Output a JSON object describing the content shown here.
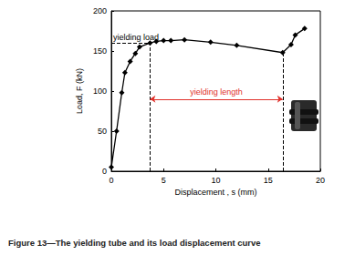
{
  "chart_data": {
    "type": "line",
    "caption": "Figure 13—The yielding tube and its load displacement curve",
    "xlabel": "Displacement , s (mm)",
    "ylabel": "Load, F (kN)",
    "x": [
      0,
      0.5,
      1.0,
      1.3,
      1.8,
      2.3,
      2.7,
      3.7,
      4.3,
      5.0,
      5.7,
      7.0,
      9.5,
      12.0,
      16.4,
      17.2,
      17.6,
      18.5
    ],
    "values": [
      5,
      50,
      98,
      123,
      137,
      147,
      155,
      160,
      162,
      163,
      163,
      164,
      161,
      157,
      148,
      158,
      170,
      178
    ],
    "color": "#000000",
    "marker": "diamond",
    "xlim": [
      0,
      20
    ],
    "ylim": [
      0,
      200
    ],
    "xticks": [
      0,
      5,
      10,
      15,
      20
    ],
    "yticks": [
      0,
      50,
      100,
      150,
      200
    ],
    "grid": false,
    "annotations": [
      {
        "text": "yielding load",
        "y": 160,
        "x": [
          0,
          3.7
        ]
      },
      {
        "text": "yielding length",
        "y": 90,
        "x": [
          3.7,
          16.4
        ],
        "color": "#e0302a"
      }
    ]
  }
}
